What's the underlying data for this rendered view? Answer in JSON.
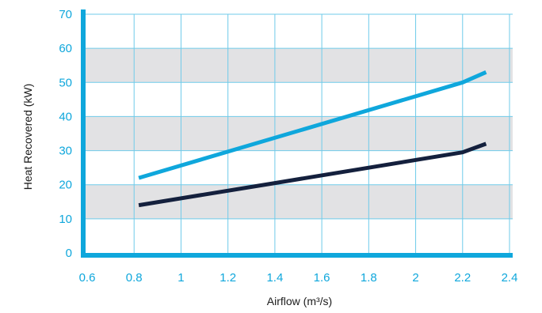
{
  "chart_data": {
    "type": "line",
    "title": "",
    "xlabel": "Airflow (m³/s)",
    "ylabel": "Heat Recovered (kW)",
    "xlim": [
      0.6,
      2.4
    ],
    "ylim": [
      0,
      70
    ],
    "xticks": [
      "0.6",
      "0.8",
      "1",
      "1.2",
      "1.4",
      "1.6",
      "1.8",
      "2",
      "2.2",
      "2.4"
    ],
    "yticks": [
      "0",
      "10",
      "20",
      "30",
      "40",
      "50",
      "60",
      "70"
    ],
    "grid": true,
    "legend": "none",
    "series": [
      {
        "color": "#0fa7dc",
        "points": [
          [
            0.82,
            22
          ],
          [
            2.2,
            50
          ],
          [
            2.3,
            53
          ]
        ]
      },
      {
        "color": "#14203d",
        "points": [
          [
            0.82,
            14
          ],
          [
            1.4,
            20.5
          ],
          [
            2.2,
            29.5
          ],
          [
            2.3,
            32
          ]
        ]
      }
    ],
    "colors": {
      "axis": "#0fa7dc",
      "grid": "#6fcbea",
      "band": "#e2e2e4",
      "tick_text": "#0fa7dc",
      "label_text": "#1b1b1b"
    }
  }
}
